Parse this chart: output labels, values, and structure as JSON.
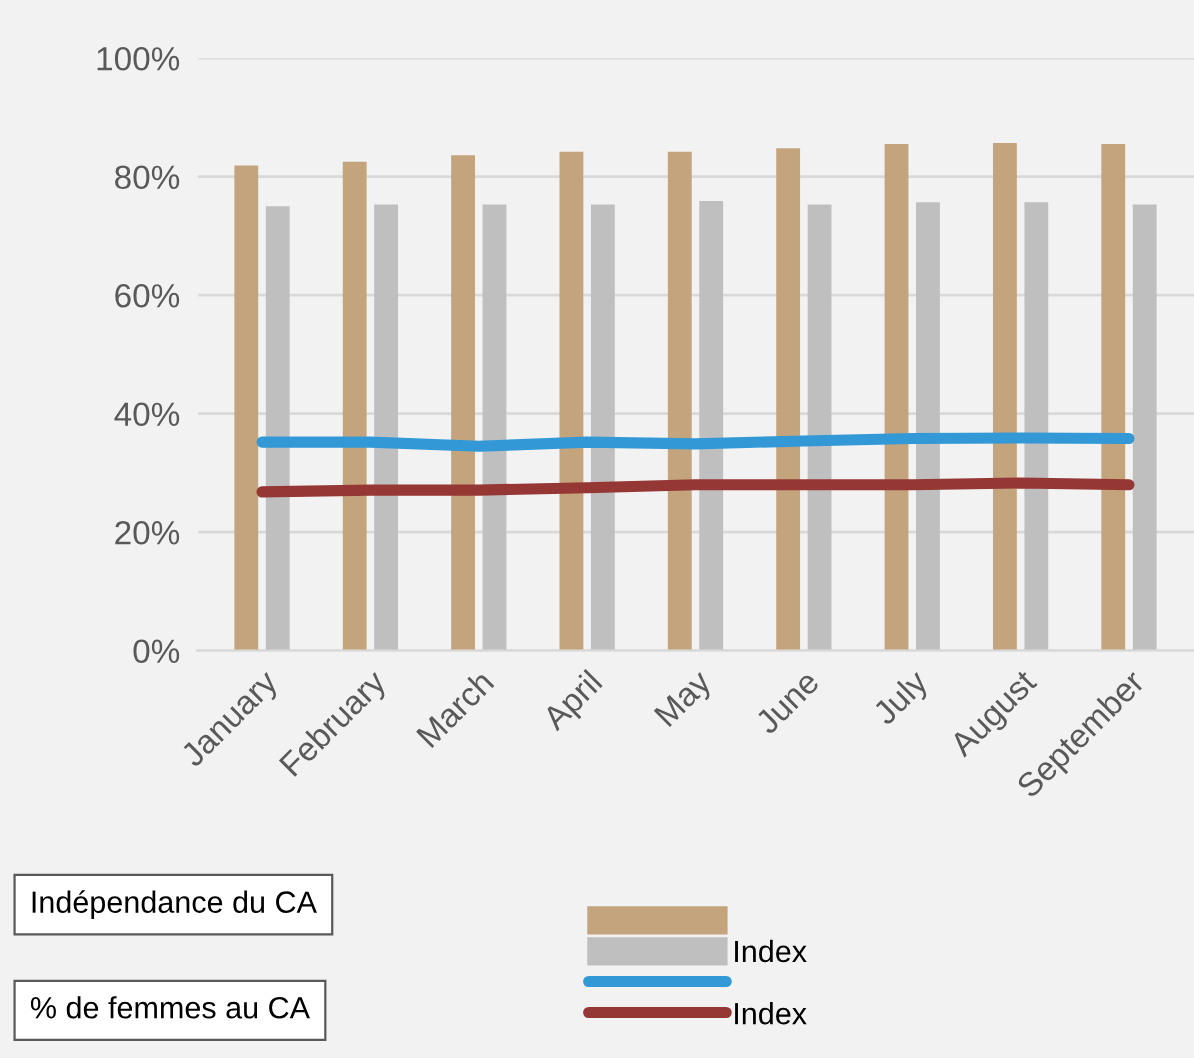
{
  "chart_data": {
    "type": "bar",
    "categories": [
      "January",
      "February",
      "March",
      "April",
      "May",
      "June",
      "July",
      "August",
      "September"
    ],
    "series": [
      {
        "color": "#c4a47c",
        "values": [
          81.9,
          82.5,
          83.6,
          84.2,
          84.2,
          84.8,
          85.5,
          85.7,
          85.5
        ]
      },
      {
        "name": "Index",
        "color": "#bfbfbf",
        "values": [
          75.0,
          75.3,
          75.3,
          75.3,
          75.9,
          75.3,
          75.7,
          75.7,
          75.3
        ]
      },
      {
        "type": "line",
        "color": "#3399d6",
        "values": [
          35.2,
          35.2,
          34.5,
          35.2,
          34.9,
          35.4,
          35.8,
          35.9,
          35.8
        ]
      },
      {
        "name": "Index",
        "type": "line",
        "color": "#953735",
        "values": [
          26.8,
          27.1,
          27.1,
          27.5,
          28.0,
          28.0,
          28.0,
          28.3,
          28.0
        ]
      }
    ],
    "ylim": [
      0,
      100
    ],
    "yticks": [
      {
        "value": 0,
        "label": "0%"
      },
      {
        "value": 20,
        "label": "20%"
      },
      {
        "value": 40,
        "label": "40%"
      },
      {
        "value": 60,
        "label": "60%"
      },
      {
        "value": 80,
        "label": "80%"
      },
      {
        "value": 100,
        "label": "100%"
      }
    ],
    "grid": "y",
    "legend": "bottom",
    "line_style": "solid",
    "marker": "none",
    "annotations": [
      "Indépendance du CA",
      "% de femmes au CA"
    ]
  }
}
